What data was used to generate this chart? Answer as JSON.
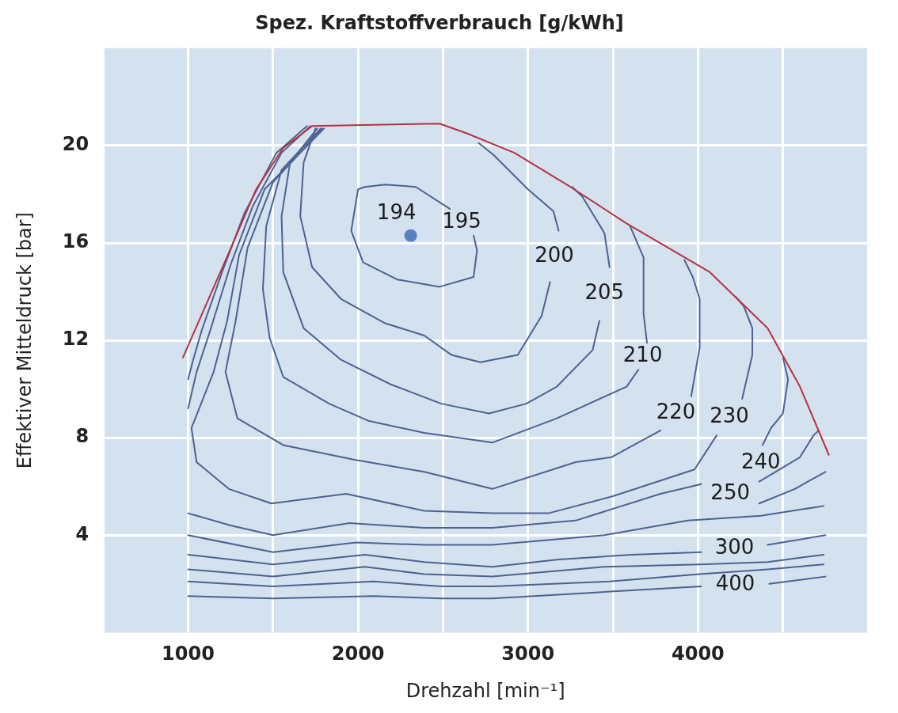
{
  "chart_data": {
    "type": "line",
    "title": "Spez. Kraftstoffverbrauch [g/kWh]",
    "xlabel": "Drehzahl [min⁻¹]",
    "ylabel": "Effektiver Mitteldruck [bar]",
    "xlim": [
      500,
      5000
    ],
    "xticks": [
      {
        "value": 500,
        "label": null
      },
      1000,
      {
        "value": 1500,
        "label": null
      },
      2000,
      {
        "value": 2500,
        "label": null
      },
      3000,
      {
        "value": 3500,
        "label": null
      },
      4000,
      {
        "value": 4500,
        "label": null
      },
      {
        "value": 5000,
        "label": null
      }
    ],
    "ylim": [
      0,
      24
    ],
    "yticks": [
      4,
      8,
      12,
      16,
      20
    ],
    "grid": true,
    "legend": false,
    "marker": "none",
    "line_style": "solid",
    "series": [
      {
        "color": "#b8323f",
        "x": [
          970,
          1240,
          1400,
          1560,
          1730,
          2480,
          2640,
          2920,
          3250,
          3580,
          4070,
          4410,
          4600,
          4770
        ],
        "values": [
          11.3,
          15.6,
          18.2,
          19.9,
          20.8,
          20.9,
          20.5,
          19.7,
          18.3,
          16.8,
          14.8,
          12.5,
          10.1,
          7.3
        ]
      },
      {
        "name": "194",
        "type": "scatter",
        "marker": "circle",
        "color": "#5b7fc0",
        "x": [
          2310
        ],
        "values": [
          16.3
        ]
      },
      {
        "name": "195",
        "color": "#4d6291",
        "x": [
          2540,
          2340,
          2160,
          2040,
          2000,
          1960,
          2030,
          2230,
          2480,
          2680,
          2700,
          2680
        ],
        "values": [
          17.4,
          18.3,
          18.4,
          18.3,
          18.2,
          16.5,
          15.2,
          14.5,
          14.2,
          14.6,
          15.7,
          16.3
        ]
      },
      {
        "name": "200",
        "color": "#4d6291",
        "x": [
          1750,
          1680,
          1660,
          1730,
          1900,
          2160,
          2390,
          2550,
          2720,
          2940,
          3080,
          3130,
          3160,
          3180,
          3150,
          3000,
          2800,
          2710
        ],
        "values": [
          20.7,
          19.3,
          17.1,
          15.0,
          13.7,
          12.7,
          12.2,
          11.4,
          11.1,
          11.4,
          13.0,
          14.4,
          null,
          16.5,
          17.3,
          18.2,
          19.6,
          20.1
        ]
      },
      {
        "name": "205",
        "color": "#4d6291",
        "x": [
          1760,
          1600,
          1550,
          1560,
          1680,
          1900,
          2190,
          2490,
          2770,
          2990,
          3170,
          3380,
          3420,
          3450,
          3480,
          3450,
          3320,
          3260
        ],
        "values": [
          20.7,
          19.3,
          17.1,
          14.8,
          12.5,
          11.2,
          10.2,
          9.4,
          9.0,
          9.4,
          10.1,
          11.6,
          12.8,
          null,
          15.0,
          16.4,
          17.9,
          18.3
        ]
      },
      {
        "name": "210",
        "color": "#4d6291",
        "x": [
          1780,
          1550,
          1460,
          1440,
          1480,
          1560,
          1830,
          2060,
          2390,
          2790,
          3170,
          3580,
          3650,
          3670,
          3700,
          3680,
          3680,
          3600
        ],
        "values": [
          20.7,
          19.0,
          16.7,
          14.1,
          12.1,
          10.5,
          9.4,
          8.7,
          8.2,
          7.8,
          8.8,
          10.1,
          10.8,
          null,
          11.9,
          13.1,
          15.4,
          16.7
        ]
      },
      {
        "name": "220",
        "color": "#4d6291",
        "x": [
          1790,
          1500,
          1350,
          1280,
          1220,
          1290,
          1560,
          1980,
          2390,
          2790,
          3280,
          3490,
          3780,
          3870,
          3960,
          4010,
          4010,
          3970,
          3920
        ],
        "values": [
          20.7,
          18.5,
          15.8,
          12.8,
          10.7,
          8.8,
          7.7,
          7.1,
          6.6,
          5.9,
          7.0,
          7.2,
          8.3,
          null,
          9.7,
          11.7,
          13.7,
          14.6,
          15.3
        ]
      },
      {
        "name": "230",
        "color": "#4d6291",
        "x": [
          1800,
          1450,
          1300,
          1230,
          1150,
          1020,
          1050,
          1240,
          1490,
          1930,
          2390,
          2790,
          3120,
          3500,
          3980,
          4110,
          4180,
          4260,
          4320,
          4320,
          4270,
          4220
        ],
        "values": [
          20.7,
          18.2,
          15.5,
          12.8,
          10.7,
          8.4,
          7.0,
          5.9,
          5.3,
          5.7,
          5.0,
          4.9,
          4.9,
          5.6,
          6.7,
          8.1,
          null,
          9.6,
          11.4,
          12.5,
          13.4,
          13.8
        ]
      },
      {
        "name": "240",
        "color": "#4d6291",
        "x": [
          4500,
          4530,
          4500,
          4430,
          4380,
          4370,
          4360,
          4600,
          4680,
          4710,
          3000,
          1720,
          1550,
          1380,
          1250,
          1130,
          1050,
          1000
        ],
        "values": [
          11.3,
          10.4,
          9.0,
          8.4,
          7.7,
          null,
          6.2,
          7.2,
          8.1,
          8.3,
          null,
          20.8,
          19.7,
          17.5,
          15.1,
          12.4,
          10.7,
          9.2
        ]
      },
      {
        "name": "250",
        "color": "#4d6291",
        "x": [
          1000,
          1250,
          1500,
          1950,
          2390,
          2790,
          3280,
          3780,
          4020,
          4190,
          4360,
          4570,
          4750,
          3000,
          1700,
          1520,
          1330,
          1200,
          1080,
          1030,
          1000
        ],
        "values": [
          4.9,
          4.4,
          4.0,
          4.5,
          4.3,
          4.3,
          4.6,
          5.7,
          6.1,
          null,
          5.3,
          5.9,
          6.6,
          null,
          20.8,
          19.7,
          17.2,
          14.8,
          12.4,
          11.2,
          10.4
        ]
      },
      {
        "color": "#4d6291",
        "x": [
          1000,
          1500,
          1990,
          2390,
          2790,
          3450,
          3940,
          4370,
          4740
        ],
        "values": [
          4.0,
          3.3,
          3.7,
          3.6,
          3.6,
          4.0,
          4.6,
          4.8,
          5.2
        ]
      },
      {
        "name": "300",
        "color": "#4d6291",
        "x": [
          1000,
          1500,
          2040,
          2390,
          2790,
          3180,
          3610,
          4020,
          4200,
          4410,
          4750
        ],
        "values": [
          3.2,
          2.8,
          3.2,
          2.9,
          2.7,
          3.0,
          3.2,
          3.3,
          null,
          3.6,
          4.0
        ]
      },
      {
        "color": "#4d6291",
        "x": [
          1000,
          1500,
          2040,
          2390,
          2790,
          3450,
          4010,
          4410,
          4740
        ],
        "values": [
          2.6,
          2.3,
          2.7,
          2.4,
          2.3,
          2.7,
          2.8,
          2.9,
          3.2
        ]
      },
      {
        "color": "#4d6291",
        "x": [
          1000,
          1500,
          2090,
          2490,
          2790,
          3480,
          4010,
          4410,
          4740
        ],
        "values": [
          2.1,
          1.9,
          2.1,
          1.9,
          1.9,
          2.1,
          2.4,
          2.6,
          2.8
        ]
      },
      {
        "name": "400",
        "color": "#4d6291",
        "x": [
          1000,
          1500,
          2090,
          2490,
          2790,
          3280,
          4020,
          4200,
          4420,
          4750
        ],
        "values": [
          1.5,
          1.4,
          1.5,
          1.4,
          1.4,
          1.6,
          1.9,
          null,
          2.0,
          2.3
        ]
      }
    ]
  }
}
